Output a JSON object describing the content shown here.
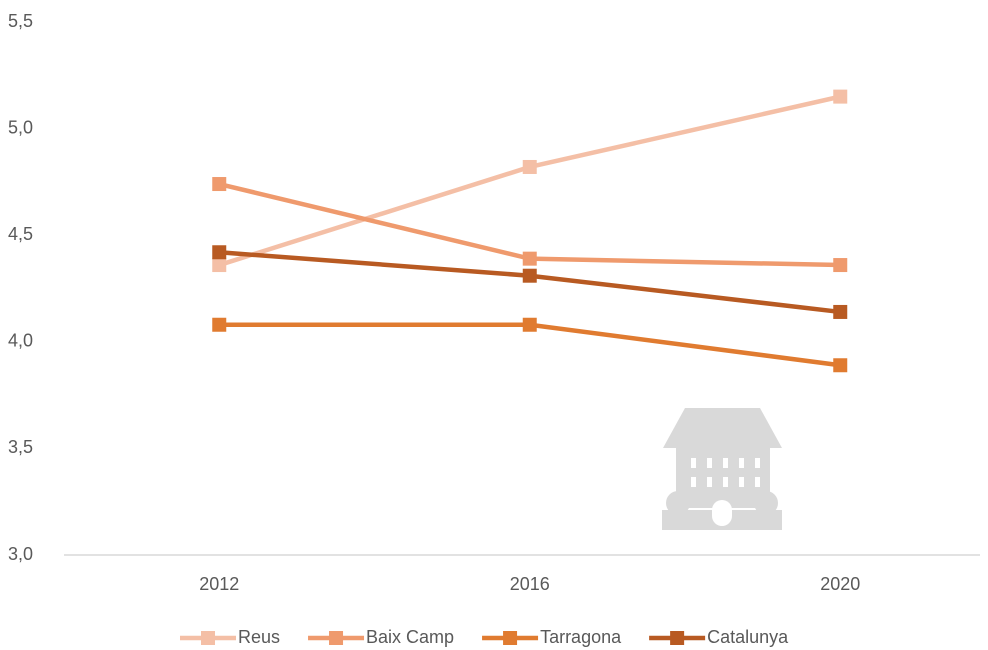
{
  "chart_data": {
    "type": "line",
    "categories": [
      "2012",
      "2016",
      "2020"
    ],
    "series": [
      {
        "name": "Reus",
        "color": "#f4bfa6",
        "values": [
          4.36,
          4.82,
          5.15
        ]
      },
      {
        "name": "Baix Camp",
        "color": "#ef9a6d",
        "values": [
          4.74,
          4.39,
          4.36
        ]
      },
      {
        "name": "Tarragona",
        "color": "#e07b30",
        "values": [
          4.08,
          4.08,
          3.89
        ]
      },
      {
        "name": "Catalunya",
        "color": "#b85a22",
        "values": [
          4.42,
          4.31,
          4.14
        ]
      }
    ],
    "ylim": [
      3.0,
      5.5
    ],
    "yticks": [
      {
        "value": 3.0,
        "label": "3,0"
      },
      {
        "value": 3.5,
        "label": "3,5"
      },
      {
        "value": 4.0,
        "label": "4,0"
      },
      {
        "value": 4.5,
        "label": "4,5"
      },
      {
        "value": 5.0,
        "label": "5,0"
      },
      {
        "value": 5.5,
        "label": "5,5"
      }
    ],
    "grid": false,
    "legend": "bottom"
  }
}
